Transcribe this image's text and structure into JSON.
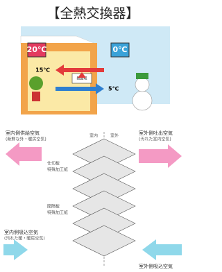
{
  "title": "【全熱交換器】",
  "top": {
    "indoor_temp": "20℃",
    "outdoor_temp": "0℃",
    "warm_out": "15℃",
    "cool_in": "5℃",
    "core": "熱回収"
  },
  "bottom": {
    "supply": {
      "label": "室内側供給空気",
      "note": "(新鮮な外・暖房空気)"
    },
    "exhaust": {
      "label": "室外側吐出空気",
      "note": "(汚れた室内空気)"
    },
    "indoor": "室内",
    "outdoor": "室外",
    "partition": {
      "label": "仕切板",
      "note": "特殊加工紙"
    },
    "spacer": {
      "label": "間隔板",
      "note": "特殊加工紙"
    },
    "return": {
      "label": "室内側吸込空気",
      "note": "(汚れた暖・暖房空気)"
    },
    "intake": {
      "label": "室外側吸込空気"
    }
  }
}
